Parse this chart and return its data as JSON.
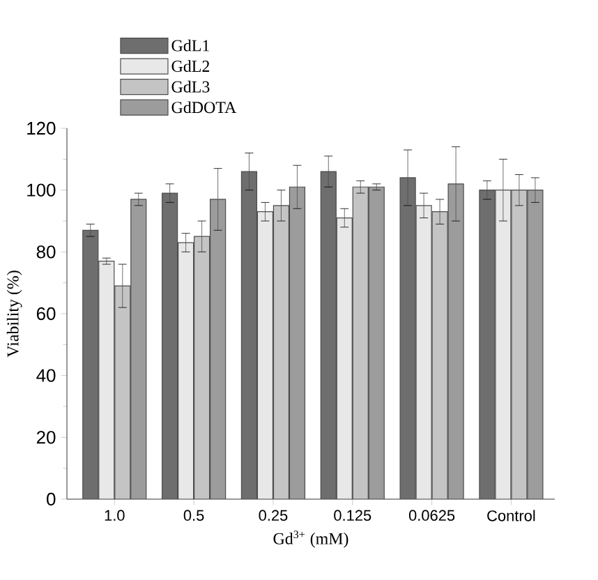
{
  "chart_data": {
    "type": "bar",
    "xlabel": "Gd$^{3+}$ (mM)",
    "ylabel": "Viability (%)",
    "categories": [
      "1.0",
      "0.5",
      "0.25",
      "0.125",
      "0.0625",
      "Control"
    ],
    "series": [
      {
        "name": "GdL1",
        "color": "#6e6e6e",
        "values": [
          87,
          99,
          106,
          106,
          104,
          100
        ],
        "errors": [
          2,
          3,
          6,
          5,
          9,
          3
        ]
      },
      {
        "name": "GdL2",
        "color": "#e8e8e8",
        "values": [
          77,
          83,
          93,
          91,
          95,
          100
        ],
        "errors": [
          1,
          3,
          3,
          3,
          4,
          10
        ]
      },
      {
        "name": "GdL3",
        "color": "#c4c4c4",
        "values": [
          69,
          85,
          95,
          101,
          93,
          100
        ],
        "errors": [
          7,
          5,
          5,
          2,
          4,
          5
        ]
      },
      {
        "name": "GdDOTA",
        "color": "#9c9c9c",
        "values": [
          97,
          97,
          101,
          101,
          102,
          100
        ],
        "errors": [
          2,
          10,
          7,
          1,
          12,
          4
        ]
      }
    ],
    "ylim": [
      0,
      120
    ],
    "yticks": [
      0,
      20,
      40,
      60,
      80,
      100,
      120
    ],
    "legend": "top left",
    "grid": false
  }
}
